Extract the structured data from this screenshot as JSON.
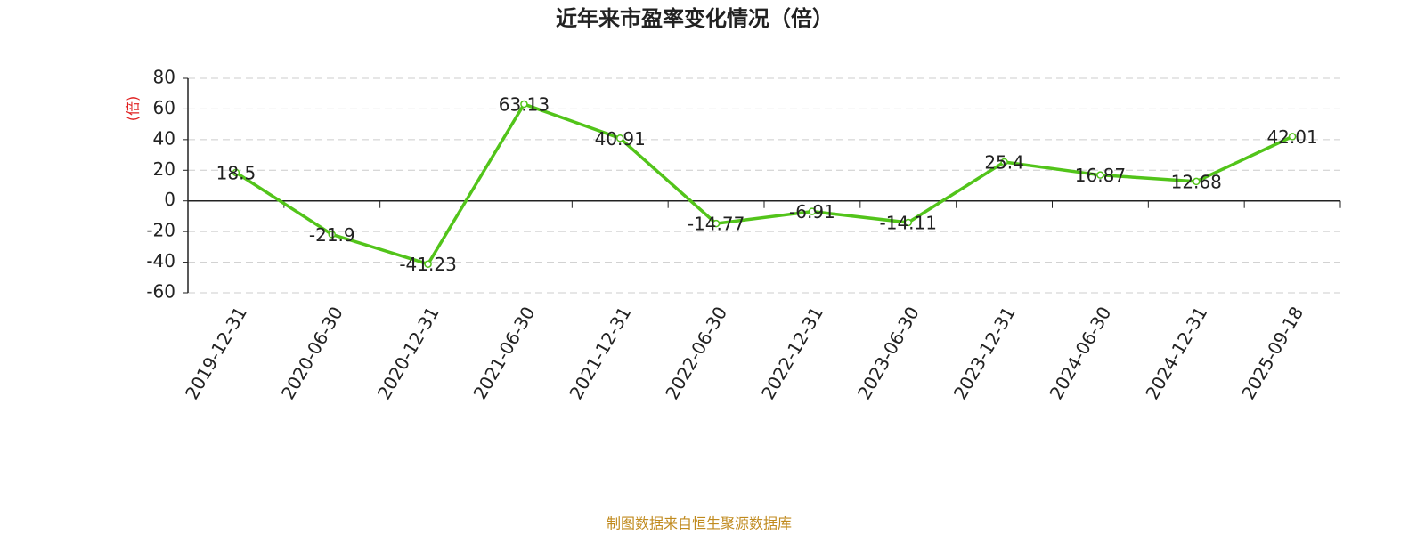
{
  "chart_data": {
    "type": "line",
    "title": "近年来市盈率变化情况（倍）",
    "y_label": "(倍)",
    "source": "制图数据来自恒生聚源数据库",
    "categories": [
      "2019-12-31",
      "2020-06-30",
      "2020-12-31",
      "2021-06-30",
      "2021-12-31",
      "2022-06-30",
      "2022-12-31",
      "2023-06-30",
      "2023-12-31",
      "2024-06-30",
      "2024-12-31",
      "2025-09-18"
    ],
    "values": [
      18.5,
      -21.9,
      -41.23,
      63.13,
      40.91,
      -14.77,
      -6.91,
      -14.11,
      25.4,
      16.87,
      12.68,
      42.01
    ],
    "color": "#52c41a",
    "ylim": [
      -60,
      80
    ],
    "yticks": [
      -60,
      -40,
      -20,
      0,
      20,
      40,
      60,
      80
    ],
    "grid": true
  }
}
